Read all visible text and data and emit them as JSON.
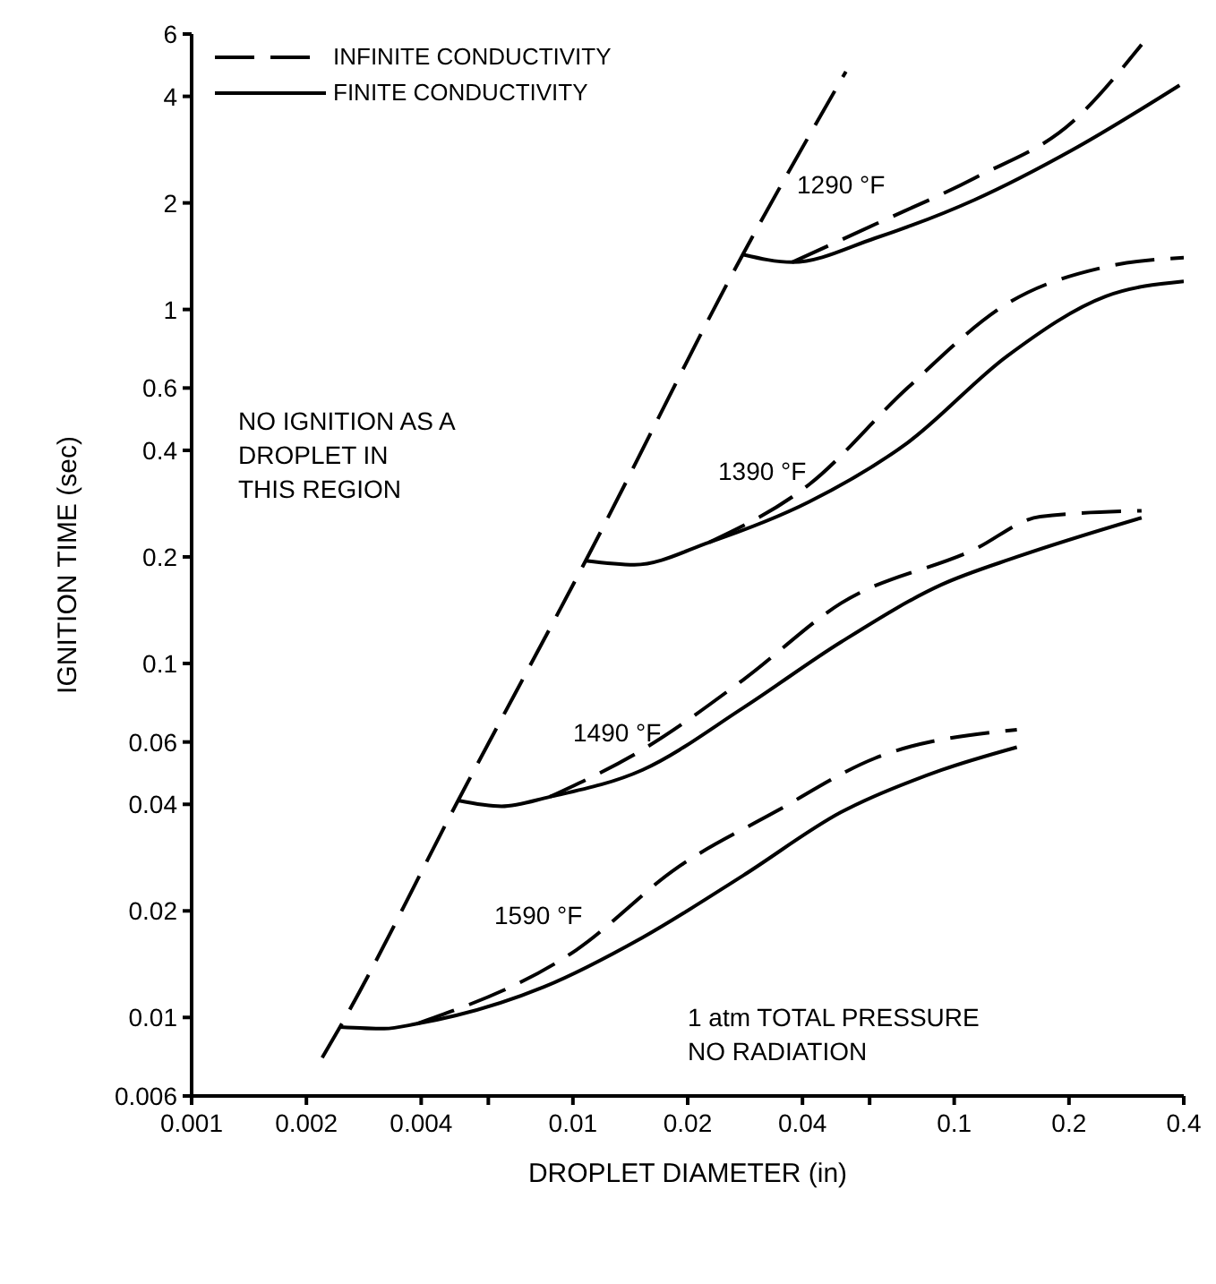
{
  "chart_data": {
    "type": "line",
    "xlabel": "DROPLET DIAMETER (in)",
    "ylabel": "IGNITION TIME (sec)",
    "log": "xy",
    "grid": false,
    "marker": "none",
    "legend": "top left",
    "xlim": [
      0.001,
      0.4
    ],
    "xticks": [
      0.001,
      0.002,
      0.004,
      {
        "value": 0.006,
        "label": null
      },
      0.01,
      0.02,
      0.04,
      {
        "value": 0.06,
        "label": null
      },
      0.1,
      0.2,
      0.4
    ],
    "ylim": [
      0.006,
      6
    ],
    "yticks": [
      0.006,
      0.01,
      0.02,
      0.04,
      0.06,
      0.1,
      0.2,
      0.4,
      0.6,
      1,
      2,
      4,
      6
    ],
    "series": [
      {
        "name": "INFINITE CONDUCTIVITY",
        "line_style": "dashed",
        "color": "#000000",
        "x": [
          0.0022,
          0.00245,
          0.005,
          0.0108,
          0.0279,
          0.052
        ],
        "values": [
          0.0077,
          0.0094,
          0.041,
          0.195,
          1.43,
          4.7
        ]
      },
      {
        "name": "FINITE CONDUCTIVITY",
        "line_style": "solid",
        "color": "#000000",
        "x": [
          0.00245,
          0.0032,
          0.0039,
          0.0084,
          0.0152,
          0.028,
          0.0505,
          0.0927,
          0.146
        ],
        "values": [
          0.0094,
          0.0093,
          0.0096,
          0.0122,
          0.0168,
          0.0252,
          0.038,
          0.05,
          0.058
        ]
      },
      {
        "line_style": "dashed",
        "color": "#000000",
        "x": [
          0.0039,
          0.0102,
          0.0187,
          0.0338,
          0.062,
          0.146
        ],
        "values": [
          0.0096,
          0.0155,
          0.0264,
          0.038,
          0.054,
          0.065
        ]
      },
      {
        "line_style": "solid",
        "color": "#000000",
        "x": [
          0.005,
          0.0065,
          0.0087,
          0.0152,
          0.028,
          0.0505,
          0.0927,
          0.146,
          0.31
        ],
        "values": [
          0.041,
          0.0395,
          0.042,
          0.05,
          0.075,
          0.115,
          0.167,
          0.2,
          0.258
        ]
      },
      {
        "line_style": "dashed",
        "color": "#000000",
        "x": [
          0.0087,
          0.0152,
          0.028,
          0.0505,
          0.113,
          0.168,
          0.31
        ],
        "values": [
          0.042,
          0.057,
          0.09,
          0.148,
          0.21,
          0.26,
          0.27
        ]
      },
      {
        "line_style": "solid",
        "color": "#000000",
        "x": [
          0.0108,
          0.0145,
          0.0228,
          0.0416,
          0.0754,
          0.138,
          0.25,
          0.4
        ],
        "values": [
          0.195,
          0.19,
          0.22,
          0.286,
          0.42,
          0.74,
          1.09,
          1.2
        ]
      },
      {
        "line_style": "dashed",
        "color": "#000000",
        "x": [
          0.0228,
          0.0416,
          0.0754,
          0.138,
          0.25,
          0.4
        ],
        "values": [
          0.22,
          0.32,
          0.6,
          1.04,
          1.32,
          1.4
        ]
      },
      {
        "line_style": "solid",
        "color": "#000000",
        "x": [
          0.0279,
          0.0376,
          0.062,
          0.113,
          0.205,
          0.39
        ],
        "values": [
          1.43,
          1.36,
          1.59,
          2.04,
          2.83,
          4.3
        ]
      },
      {
        "line_style": "dashed",
        "color": "#000000",
        "x": [
          0.0376,
          0.062,
          0.113,
          0.205,
          0.31
        ],
        "values": [
          1.36,
          1.74,
          2.35,
          3.4,
          5.6
        ]
      }
    ],
    "annotations": [
      "1290 °F",
      "1390 °F",
      "1490 °F",
      "1590 °F",
      "NO IGNITION AS A\nDROPLET IN\nTHIS REGION",
      "1 atm TOTAL PRESSURE\nNO RADIATION"
    ]
  }
}
